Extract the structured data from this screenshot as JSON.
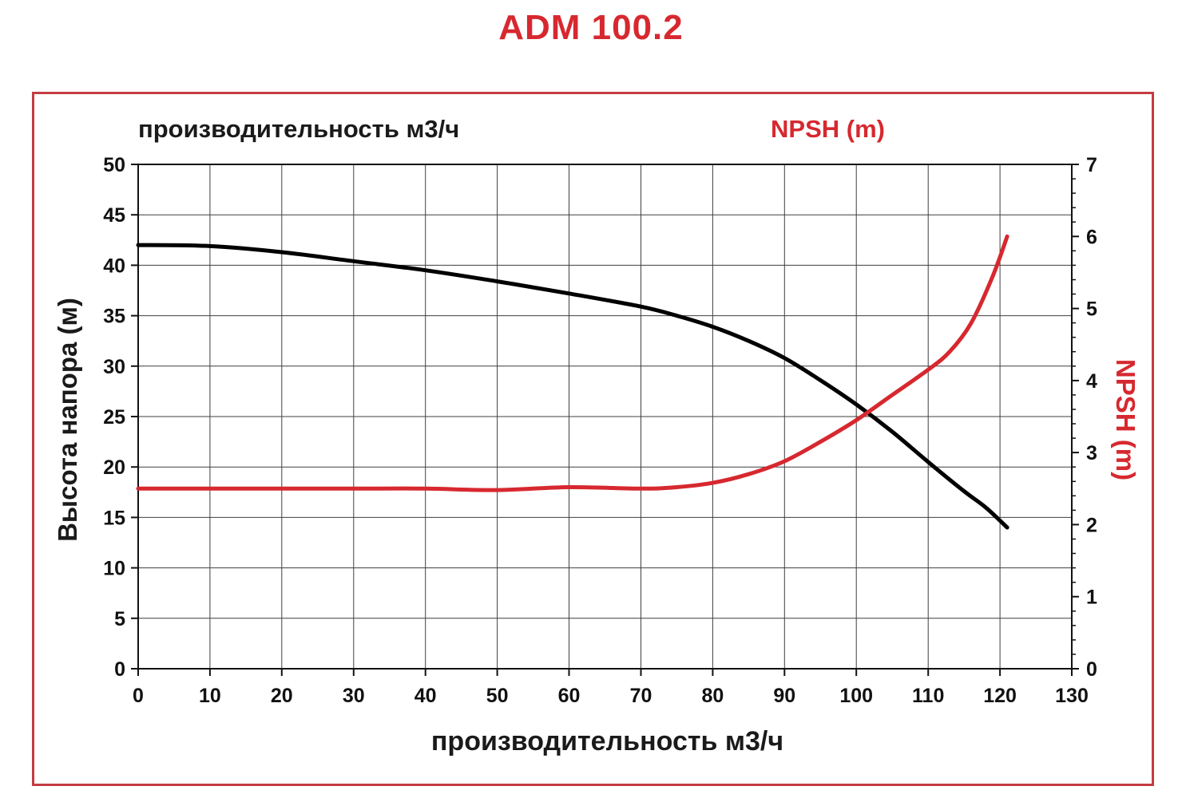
{
  "page_title": "ADM 100.2",
  "colors": {
    "accent": "#d7282f",
    "frame_border": "#c43b42",
    "grid": "#3f3f3f",
    "axis": "#111111",
    "head_curve": "#000000",
    "npsh_curve": "#d7282f"
  },
  "chart_data": {
    "type": "line",
    "title": "ADM 100.2",
    "top_left_label": "производительность м3/ч",
    "top_right_label": "NPSH (m)",
    "xlabel": "производительность м3/ч",
    "ylabel_left": "Высота напора (м)",
    "ylabel_right": "NPSH (m)",
    "xlim": [
      0,
      130
    ],
    "ylim_left": [
      0,
      50
    ],
    "ylim_right": [
      0,
      7
    ],
    "x_ticks": [
      0,
      10,
      20,
      30,
      40,
      50,
      60,
      70,
      80,
      90,
      100,
      110,
      120,
      130
    ],
    "y_left_ticks": [
      0,
      5,
      10,
      15,
      20,
      25,
      30,
      35,
      40,
      45,
      50
    ],
    "y_right_ticks": [
      0,
      1,
      2,
      3,
      4,
      5,
      6,
      7
    ],
    "grid": true,
    "legend_position": "none",
    "series": [
      {
        "name": "Высота напора (м)",
        "axis": "left",
        "color": "#000000",
        "x": [
          0,
          10,
          20,
          30,
          40,
          50,
          60,
          70,
          75,
          80,
          85,
          90,
          95,
          100,
          105,
          110,
          115,
          118,
          121
        ],
        "y": [
          42,
          41.9,
          41.3,
          40.4,
          39.5,
          38.4,
          37.2,
          35.9,
          35,
          33.9,
          32.5,
          30.8,
          28.6,
          26.2,
          23.5,
          20.5,
          17.6,
          16,
          14
        ]
      },
      {
        "name": "NPSH (m)",
        "axis": "right",
        "color": "#d7282f",
        "x": [
          0,
          10,
          20,
          30,
          40,
          50,
          60,
          70,
          75,
          80,
          85,
          90,
          95,
          100,
          105,
          110,
          113,
          116,
          119,
          121
        ],
        "y": [
          2.5,
          2.5,
          2.5,
          2.5,
          2.5,
          2.48,
          2.52,
          2.5,
          2.52,
          2.58,
          2.7,
          2.88,
          3.15,
          3.45,
          3.8,
          4.15,
          4.4,
          4.8,
          5.45,
          6.0
        ]
      }
    ]
  }
}
